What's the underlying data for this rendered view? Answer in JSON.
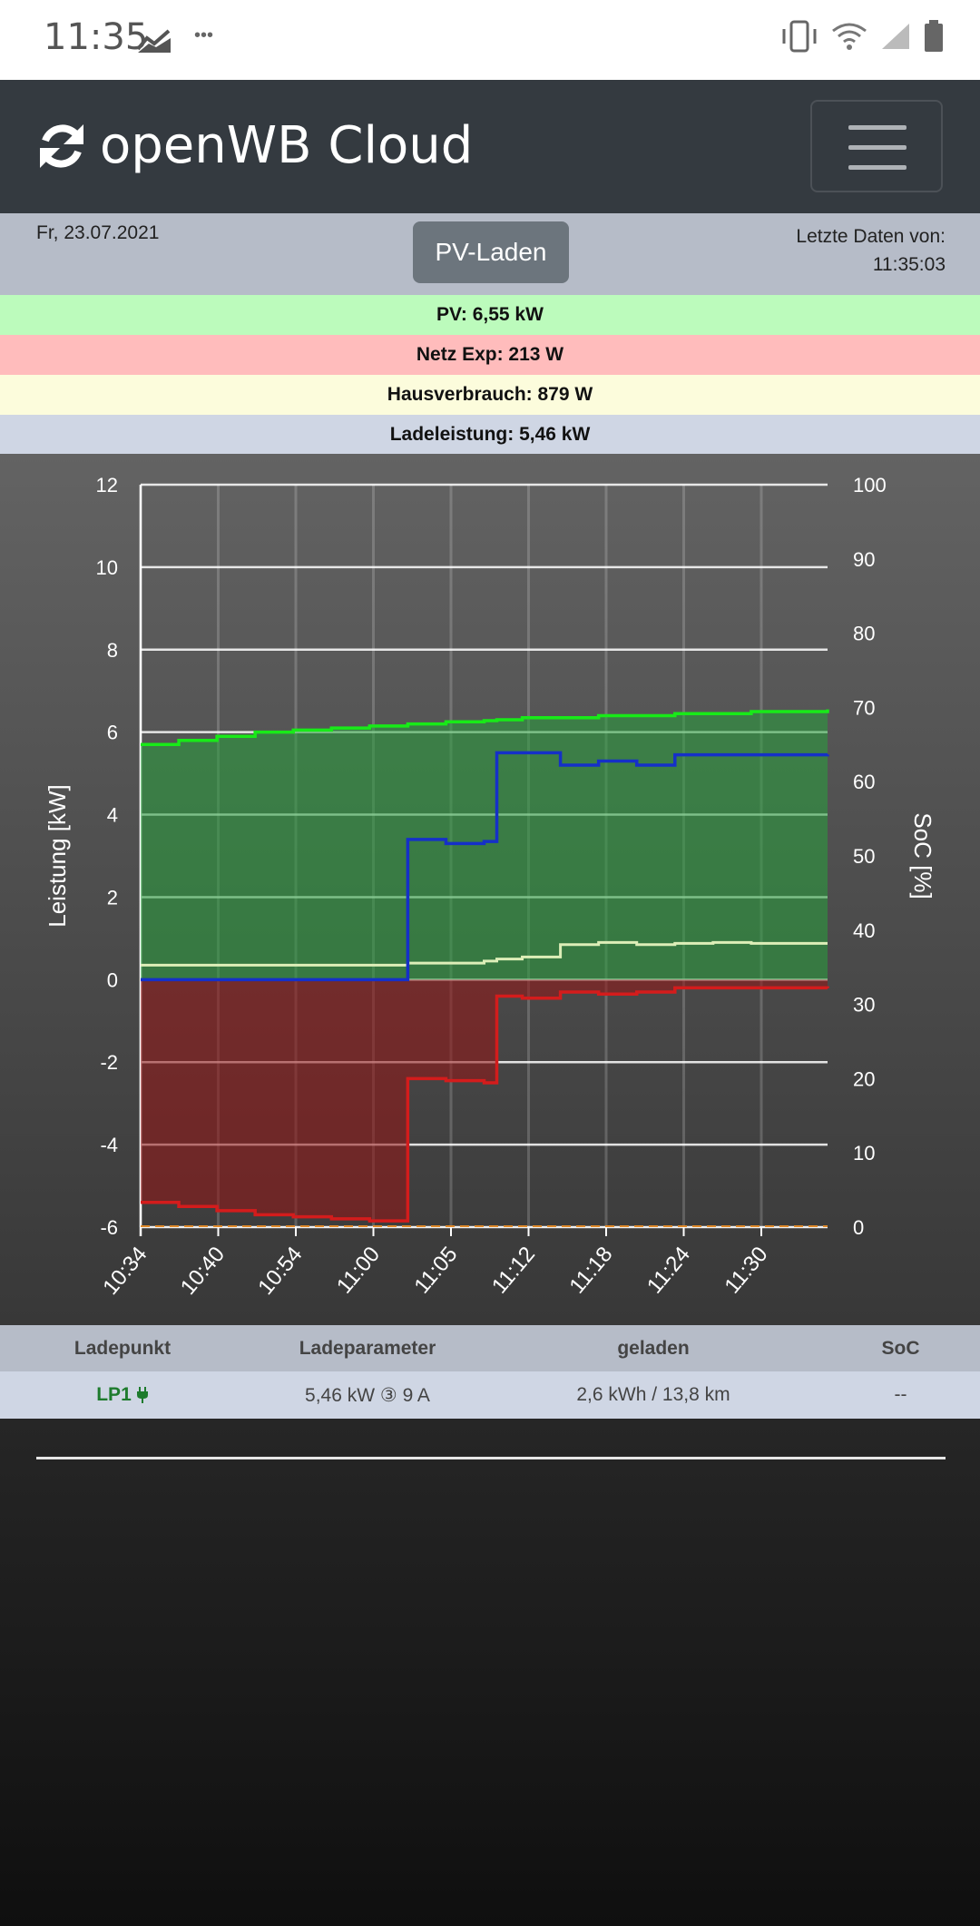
{
  "status_bar": {
    "time": "11:35"
  },
  "navbar": {
    "brand": "openWB Cloud"
  },
  "info": {
    "date": "Fr, 23.07.2021",
    "mode_button": "PV-Laden",
    "last_data_label": "Letzte Daten von:",
    "last_data_time": "11:35:03"
  },
  "stats": {
    "pv": "PV: 6,55 kW",
    "grid": "Netz Exp: 213 W",
    "house": "Hausverbrauch: 879 W",
    "charge": "Ladeleistung: 5,46 kW"
  },
  "colors": {
    "pv_bg": "#bcfbbc",
    "grid_bg": "#ffbcbc",
    "house_bg": "#fcfcdc",
    "charge_bg": "#cfd6e4",
    "pv_line": "#18ea18",
    "charge_line": "#1530c8",
    "grid_line": "#d41c1c",
    "house_line": "#ddeeb8"
  },
  "chart_data": {
    "type": "line",
    "xlabel": "",
    "ylabel": "Leistung [kW]",
    "y2label": "SoC [%]",
    "ylim": [
      -6,
      12
    ],
    "y2lim": [
      0,
      100
    ],
    "yticks": [
      "12",
      "10",
      "8",
      "6",
      "4",
      "2",
      "0",
      "-2",
      "-4",
      "-6"
    ],
    "y2ticks": [
      "100",
      "90",
      "80",
      "70",
      "60",
      "50",
      "40",
      "30",
      "20",
      "10",
      "0"
    ],
    "xticks": [
      "10:34",
      "10:40",
      "10:54",
      "11:00",
      "11:05",
      "11:12",
      "11:18",
      "11:24",
      "11:30"
    ],
    "grid": true,
    "x_minutes": [
      0,
      3,
      6,
      9,
      12,
      15,
      18,
      21,
      24,
      27,
      28,
      30,
      33,
      36,
      39,
      42,
      45,
      48,
      51,
      54
    ],
    "series": [
      {
        "key": "pv",
        "values": [
          5.7,
          5.8,
          5.9,
          6.0,
          6.05,
          6.1,
          6.15,
          6.2,
          6.25,
          6.28,
          6.3,
          6.35,
          6.35,
          6.4,
          6.4,
          6.45,
          6.45,
          6.5,
          6.5,
          6.55
        ]
      },
      {
        "key": "charge",
        "values": [
          0,
          0,
          0,
          0,
          0,
          0,
          0,
          3.4,
          3.3,
          3.35,
          5.5,
          5.5,
          5.2,
          5.3,
          5.2,
          5.45,
          5.45,
          5.45,
          5.45,
          5.46
        ]
      },
      {
        "key": "house",
        "values": [
          0.35,
          0.35,
          0.35,
          0.35,
          0.35,
          0.35,
          0.35,
          0.4,
          0.4,
          0.45,
          0.5,
          0.55,
          0.85,
          0.9,
          0.85,
          0.88,
          0.9,
          0.88,
          0.88,
          0.88
        ]
      },
      {
        "key": "grid",
        "values": [
          -5.4,
          -5.5,
          -5.6,
          -5.7,
          -5.75,
          -5.8,
          -5.85,
          -2.4,
          -2.45,
          -2.5,
          -0.4,
          -0.45,
          -0.3,
          -0.35,
          -0.3,
          -0.2,
          -0.2,
          -0.2,
          -0.2,
          -0.21
        ]
      }
    ]
  },
  "table": {
    "headers": [
      "Ladepunkt",
      "Ladeparameter",
      "geladen",
      "SoC"
    ],
    "row": {
      "lp": "LP1",
      "params": "5,46 kW ③ 9 A",
      "charged": "2,6 kWh / 13,8 km",
      "soc": "--"
    }
  }
}
